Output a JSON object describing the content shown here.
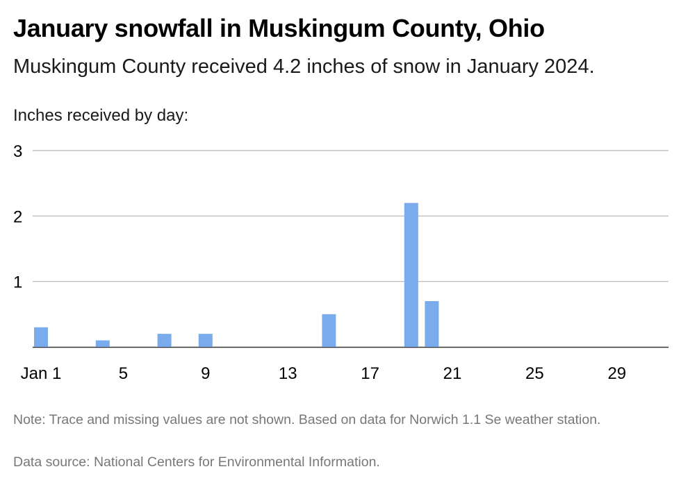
{
  "title": "January snowfall in Muskingum County, Ohio",
  "subtitle": "Muskingum County received 4.2 inches of snow in January 2024.",
  "axis_caption": "Inches received by day:",
  "note": "Note: Trace and missing values are not shown. Based on data for Norwich 1.1 Se weather station.",
  "source": "Data source: National Centers for Environmental Information.",
  "colors": {
    "bar": "#7aabec",
    "grid": "#b3b3b3",
    "axis": "#333333"
  },
  "chart_data": {
    "type": "bar",
    "title": "January snowfall in Muskingum County, Ohio",
    "ylabel": "Inches received by day:",
    "xlim": [
      1,
      31
    ],
    "ylim": [
      0,
      3
    ],
    "yticks": [
      1,
      2,
      3
    ],
    "xticks": [
      1,
      5,
      9,
      13,
      17,
      21,
      25,
      29
    ],
    "xtick_labels": [
      "Jan 1",
      "5",
      "9",
      "13",
      "17",
      "21",
      "25",
      "29"
    ],
    "grid": true,
    "x": [
      1,
      4,
      7,
      9,
      15,
      19,
      20
    ],
    "values": [
      0.3,
      0.1,
      0.2,
      0.2,
      0.5,
      2.2,
      0.7
    ]
  }
}
